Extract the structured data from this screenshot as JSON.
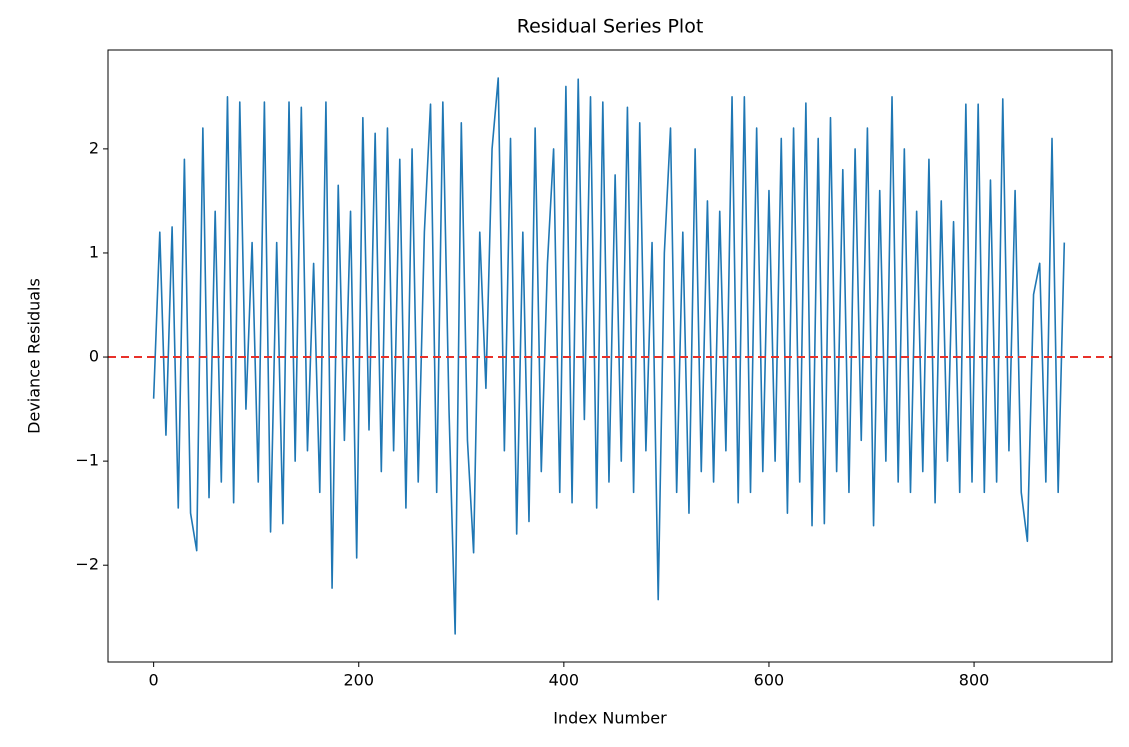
{
  "chart_data": {
    "type": "line",
    "title": "Residual Series Plot",
    "x_label": "Index Number",
    "y_label": "Deviance Residuals",
    "x": [
      0,
      6,
      12,
      18,
      24,
      30,
      36,
      42,
      48,
      54,
      60,
      66,
      72,
      78,
      84,
      90,
      96,
      102,
      108,
      114,
      120,
      126,
      132,
      138,
      144,
      150,
      156,
      162,
      168,
      174,
      180,
      186,
      192,
      198,
      204,
      210,
      216,
      222,
      228,
      234,
      240,
      246,
      252,
      258,
      264,
      270,
      276,
      282,
      288,
      294,
      300,
      306,
      312,
      318,
      324,
      330,
      336,
      342,
      348,
      354,
      360,
      366,
      372,
      378,
      384,
      390,
      396,
      402,
      408,
      414,
      420,
      426,
      432,
      438,
      444,
      450,
      456,
      462,
      468,
      474,
      480,
      486,
      492,
      498,
      504,
      510,
      516,
      522,
      528,
      534,
      540,
      546,
      552,
      558,
      564,
      570,
      576,
      582,
      588,
      594,
      600,
      606,
      612,
      618,
      624,
      630,
      636,
      642,
      648,
      654,
      660,
      666,
      672,
      678,
      684,
      690,
      696,
      702,
      708,
      714,
      720,
      726,
      732,
      738,
      744,
      750,
      756,
      762,
      768,
      774,
      780,
      786,
      792,
      798,
      804,
      810,
      816,
      822,
      828,
      834,
      840,
      846,
      852,
      858,
      864,
      870,
      876,
      882,
      888
    ],
    "series": [
      {
        "name": "Residuals",
        "color": "#1f77b4",
        "values": [
          -0.4,
          1.2,
          -0.75,
          1.25,
          -1.45,
          1.9,
          -1.5,
          -1.86,
          2.2,
          -1.35,
          1.4,
          -1.2,
          2.5,
          -1.4,
          2.45,
          -0.5,
          1.1,
          -1.2,
          2.45,
          -1.68,
          1.1,
          -1.6,
          2.45,
          -1.0,
          2.4,
          -0.9,
          0.9,
          -1.3,
          2.45,
          -2.22,
          1.65,
          -0.8,
          1.4,
          -1.93,
          2.3,
          -0.7,
          2.15,
          -1.1,
          2.2,
          -0.9,
          1.9,
          -1.45,
          2.0,
          -1.2,
          1.2,
          2.43,
          -1.3,
          2.45,
          -0.5,
          -2.66,
          2.25,
          -0.8,
          -1.88,
          1.2,
          -0.3,
          2.0,
          2.68,
          -0.9,
          2.1,
          -1.7,
          1.2,
          -1.58,
          2.2,
          -1.1,
          0.9,
          2.0,
          -1.3,
          2.6,
          -1.4,
          2.67,
          -0.6,
          2.5,
          -1.45,
          2.45,
          -1.2,
          1.75,
          -1.0,
          2.4,
          -1.3,
          2.25,
          -0.9,
          1.1,
          -2.33,
          1.0,
          2.2,
          -1.3,
          1.2,
          -1.5,
          2.0,
          -1.1,
          1.5,
          -1.2,
          1.4,
          -0.9,
          2.5,
          -1.4,
          2.5,
          -1.3,
          2.2,
          -1.1,
          1.6,
          -1.0,
          2.1,
          -1.5,
          2.2,
          -1.2,
          2.44,
          -1.62,
          2.1,
          -1.6,
          2.3,
          -1.1,
          1.8,
          -1.3,
          2.0,
          -0.8,
          2.2,
          -1.62,
          1.6,
          -1.0,
          2.5,
          -1.2,
          2.0,
          -1.3,
          1.4,
          -1.1,
          1.9,
          -1.4,
          1.5,
          -1.0,
          1.3,
          -1.3,
          2.43,
          -1.2,
          2.43,
          -1.3,
          1.7,
          -1.2,
          2.48,
          -0.9,
          1.6,
          -1.3,
          -1.77,
          0.6,
          0.9,
          -1.2,
          2.1,
          -1.3,
          1.1
        ]
      }
    ],
    "hline": {
      "value": 0,
      "color": "#e8312a"
    },
    "xlim": [
      -44.5,
      934.5
    ],
    "ylim": [
      -2.93,
      2.95
    ],
    "xticks": [
      0,
      200,
      400,
      600,
      800
    ],
    "yticks": [
      {
        "value": -2,
        "label": "−2"
      },
      {
        "value": -1,
        "label": "−1"
      },
      0,
      1,
      2
    ]
  }
}
